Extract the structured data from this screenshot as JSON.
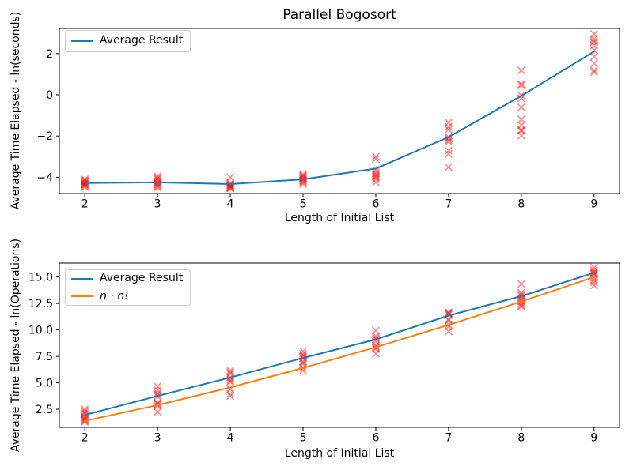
{
  "figure": {
    "background_color": "#ffffff",
    "spine_color": "#000000",
    "text_color": "#000000",
    "scatter_color": "#ff0000",
    "scatter_opacity": 0.45,
    "series_blue": "#1f77b4",
    "series_orange": "#ff7f0e"
  },
  "chart_data": [
    {
      "type": "line",
      "name": "timing-subplot",
      "title": "Parallel Bogosort",
      "xlabel": "Length of Initial List",
      "ylabel": "Average Time Elapsed - ln(seconds)",
      "xlim": [
        1.65,
        9.35
      ],
      "ylim": [
        -4.79,
        3.22
      ],
      "xticks": [
        2,
        3,
        4,
        5,
        6,
        7,
        8,
        9
      ],
      "ytick_values": [
        -4,
        -2,
        0,
        2
      ],
      "ytick_labels": [
        "−4",
        "−2",
        "0",
        "2"
      ],
      "grid": false,
      "legend_position": "upper left",
      "x": [
        2,
        3,
        4,
        5,
        6,
        7,
        8,
        9
      ],
      "series": [
        {
          "name": "Average Result",
          "color": "#1f77b4",
          "values": [
            -4.28,
            -4.25,
            -4.33,
            -4.1,
            -3.58,
            -2.05,
            -0.05,
            2.1
          ]
        }
      ],
      "scatter": {
        "name": "individual trial results",
        "marker": "x",
        "color": "#ff0000",
        "opacity": 0.45,
        "groups": [
          [
            -4.1,
            -4.15,
            -4.2,
            -4.24,
            -4.28,
            -4.31,
            -4.35,
            -4.38,
            -4.42,
            -4.48
          ],
          [
            -3.95,
            -4.02,
            -4.08,
            -4.15,
            -4.22,
            -4.28,
            -4.33,
            -4.38,
            -4.44,
            -4.5
          ],
          [
            -4.0,
            -4.28,
            -4.33,
            -4.37,
            -4.4,
            -4.43,
            -4.46,
            -4.49,
            -4.52,
            -4.55
          ],
          [
            -3.85,
            -3.9,
            -3.95,
            -4.0,
            -4.05,
            -4.1,
            -4.15,
            -4.2,
            -4.26,
            -4.33
          ],
          [
            -3.0,
            -3.12,
            -3.65,
            -3.75,
            -3.83,
            -3.9,
            -3.96,
            -4.02,
            -4.1,
            -4.25
          ],
          [
            -1.34,
            -1.55,
            -1.69,
            -2.05,
            -2.12,
            -2.2,
            -2.28,
            -2.71,
            -2.87,
            -3.51
          ],
          [
            1.18,
            0.52,
            0.46,
            -0.03,
            -0.16,
            -0.61,
            -1.19,
            -1.47,
            -1.7,
            -1.75,
            -1.98
          ],
          [
            2.95,
            2.72,
            2.6,
            2.55,
            2.4,
            2.17,
            1.85,
            1.53,
            1.18,
            1.1
          ]
        ]
      }
    },
    {
      "type": "line",
      "name": "operations-subplot",
      "title": "",
      "xlabel": "Length of Initial List",
      "ylabel": "Average Time Elapsed - ln(Operations)",
      "xlim": [
        1.65,
        9.35
      ],
      "ylim": [
        0.78,
        16.32
      ],
      "xticks": [
        2,
        3,
        4,
        5,
        6,
        7,
        8,
        9
      ],
      "ytick_values": [
        2.5,
        5.0,
        7.5,
        10.0,
        12.5,
        15.0
      ],
      "ytick_labels": [
        "2.5",
        "5.0",
        "7.5",
        "10.0",
        "12.5",
        "15.0"
      ],
      "grid": false,
      "legend_position": "upper left",
      "x": [
        2,
        3,
        4,
        5,
        6,
        7,
        8,
        9
      ],
      "series": [
        {
          "name": "Average Result",
          "color": "#1f77b4",
          "values": [
            1.95,
            3.75,
            5.5,
            7.35,
            9.1,
            11.35,
            13.2,
            15.4
          ]
        },
        {
          "name": "n · n!",
          "math": true,
          "color": "#ff7f0e",
          "values": [
            1.39,
            2.89,
            4.56,
            6.4,
            8.37,
            10.47,
            12.68,
            15.0
          ]
        }
      ],
      "scatter": {
        "name": "individual trial results",
        "marker": "x",
        "color": "#ff0000",
        "opacity": 0.45,
        "groups": [
          [
            1.3,
            1.42,
            1.5,
            1.58,
            1.68,
            1.8,
            2.05,
            2.18,
            2.32,
            2.48
          ],
          [
            2.25,
            2.8,
            2.95,
            3.02,
            3.1,
            3.7,
            3.88,
            4.0,
            4.3,
            4.65
          ],
          [
            3.75,
            3.95,
            4.4,
            5.05,
            5.18,
            5.32,
            5.5,
            5.85,
            6.0,
            6.15
          ],
          [
            6.15,
            6.4,
            6.78,
            6.9,
            7.02,
            7.3,
            7.48,
            7.6,
            7.75,
            8.0
          ],
          [
            7.75,
            8.18,
            8.3,
            8.42,
            8.55,
            8.9,
            9.1,
            9.25,
            9.4,
            9.95
          ],
          [
            9.85,
            10.3,
            10.5,
            10.9,
            11.0,
            11.45,
            11.52,
            11.6,
            11.68
          ],
          [
            12.2,
            12.32,
            12.5,
            12.7,
            12.85,
            13.0,
            13.2,
            13.35,
            13.5,
            14.35
          ],
          [
            14.2,
            14.5,
            14.7,
            14.9,
            15.2,
            15.3,
            15.4,
            15.5,
            15.65,
            15.9
          ]
        ]
      }
    }
  ]
}
